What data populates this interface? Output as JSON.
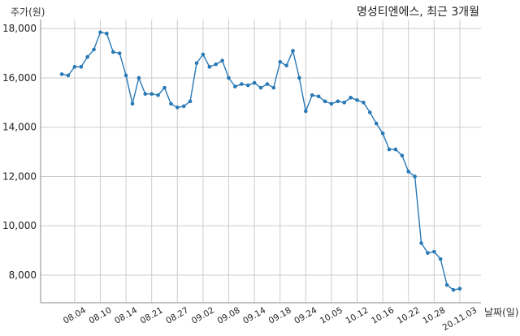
{
  "chart_data": {
    "type": "line",
    "title": "명성티엔에스, 최근 3개월",
    "xlabel": "날짜(일)",
    "ylabel": "주가(원)",
    "ylim": [
      6880,
      18370
    ],
    "yticks": [
      8000,
      10000,
      12000,
      14000,
      16000,
      18000
    ],
    "grid": true,
    "categories": [
      "",
      "",
      "08.04",
      "",
      "",
      "",
      "08.10",
      "",
      "",
      "",
      "08.14",
      "",
      "",
      "",
      "08.21",
      "",
      "",
      "",
      "08.27",
      "",
      "",
      "",
      "09.02",
      "",
      "",
      "",
      "09.08",
      "",
      "",
      "",
      "09.14",
      "",
      "",
      "",
      "09.18",
      "",
      "",
      "",
      "09.24",
      "",
      "",
      "",
      "10.05",
      "",
      "",
      "",
      "10.12",
      "",
      "",
      "",
      "10.16",
      "",
      "",
      "",
      "10.22",
      "",
      "",
      "",
      "10.28",
      "",
      "",
      "",
      "20.11.03"
    ],
    "values": [
      16150,
      16100,
      16450,
      16450,
      16850,
      17150,
      17850,
      17800,
      17050,
      17000,
      16100,
      14950,
      16000,
      15350,
      15350,
      15300,
      15600,
      14950,
      14800,
      14850,
      15050,
      16600,
      16950,
      16450,
      16550,
      16700,
      16000,
      15650,
      15750,
      15700,
      15800,
      15600,
      15750,
      15600,
      16650,
      16500,
      17100,
      16000,
      14650,
      15300,
      15250,
      15050,
      14950,
      15050,
      15000,
      15200,
      15100,
      15000,
      14600,
      14150,
      13750,
      13100,
      13100,
      12850,
      12200,
      12000,
      9300,
      8900,
      8950,
      8650,
      7600,
      7400,
      7450
    ]
  },
  "colors": {
    "series": "#2878b5",
    "grid": "#cccccc"
  }
}
